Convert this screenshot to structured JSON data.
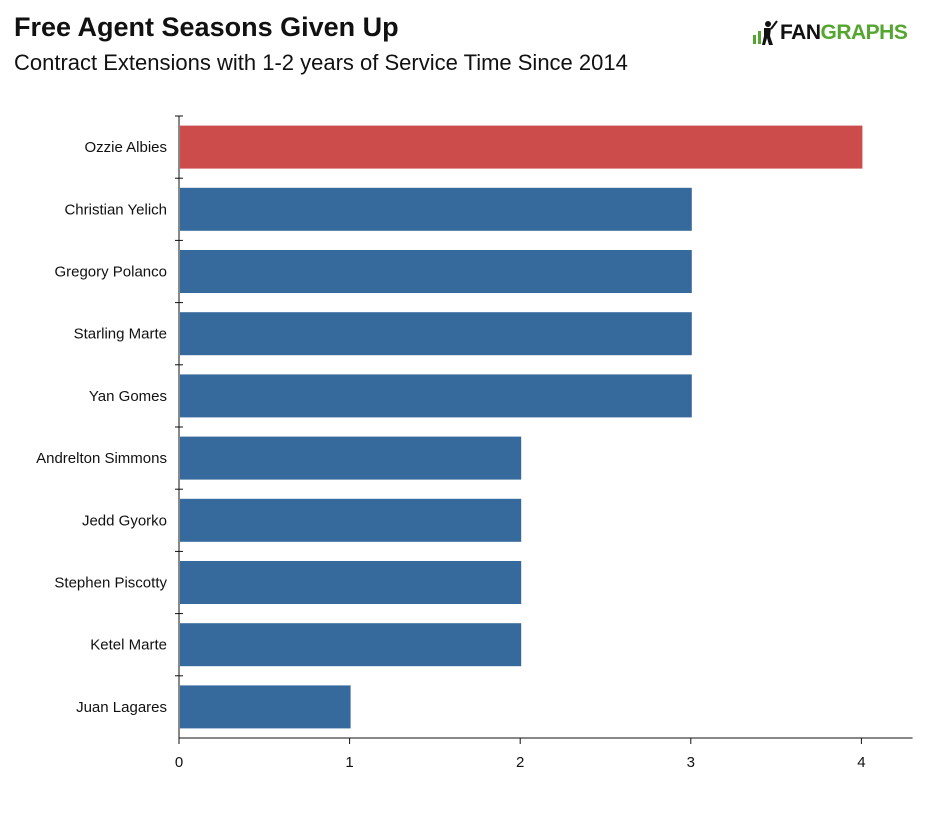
{
  "header": {
    "title": "Free Agent Seasons Given Up",
    "subtitle": "Contract Extensions with 1-2 years of Service Time Since 2014",
    "logo_fan": "FAN",
    "logo_graphs": "GRAPHS"
  },
  "colors": {
    "highlight": "#cc4c4c",
    "bar": "#376a9c",
    "logo_green": "#55a630"
  },
  "chart_data": {
    "type": "bar",
    "orientation": "horizontal",
    "title": "Free Agent Seasons Given Up",
    "subtitle": "Contract Extensions with 1-2 years of Service Time Since 2014",
    "categories": [
      "Ozzie Albies",
      "Christian Yelich",
      "Gregory Polanco",
      "Starling Marte",
      "Yan Gomes",
      "Andrelton Simmons",
      "Jedd Gyorko",
      "Stephen Piscotty",
      "Ketel Marte",
      "Juan Lagares"
    ],
    "values": [
      4,
      3,
      3,
      3,
      3,
      2,
      2,
      2,
      2,
      1
    ],
    "highlight": [
      "Ozzie Albies"
    ],
    "xticks": [
      0,
      1,
      2,
      3,
      4
    ],
    "xlim": [
      0,
      4.3
    ],
    "grid": false
  }
}
